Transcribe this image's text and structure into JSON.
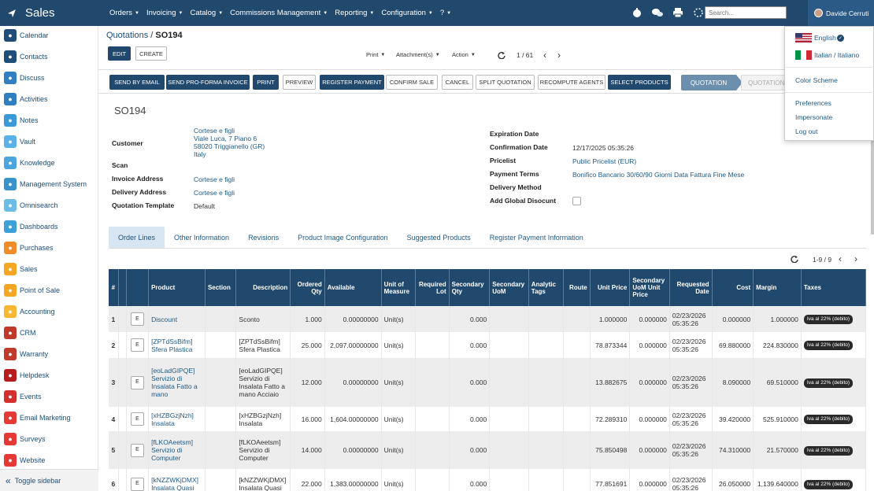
{
  "app": {
    "brand": "Sales"
  },
  "topmenu": [
    {
      "label": "Orders",
      "caret": "▼"
    },
    {
      "label": "Invoicing",
      "caret": "▼"
    },
    {
      "label": "Catalog",
      "caret": "▼"
    },
    {
      "label": "Commissions Management",
      "caret": "▼"
    },
    {
      "label": "Reporting",
      "caret": "▼"
    },
    {
      "label": "Configuration",
      "caret": "▼"
    },
    {
      "label": "?",
      "caret": "▼"
    }
  ],
  "search": {
    "placeholder": "Search..."
  },
  "user": {
    "name": "Davide Cerruti"
  },
  "sidebar": {
    "items": [
      {
        "label": "Calendar",
        "color": "#1f4e79"
      },
      {
        "label": "Contacts",
        "color": "#1f4e79"
      },
      {
        "label": "Discuss",
        "color": "#2f7fc1"
      },
      {
        "label": "Activities",
        "color": "#2f7fc1"
      },
      {
        "label": "Notes",
        "color": "#3a9ad9"
      },
      {
        "label": "Vault",
        "color": "#5bb0e8"
      },
      {
        "label": "Knowledge",
        "color": "#4aa6dd"
      },
      {
        "label": "Management System",
        "color": "#3893cc"
      },
      {
        "label": "Omnisearch",
        "color": "#6cbde6"
      },
      {
        "label": "Dashboards",
        "color": "#3da0d8"
      },
      {
        "label": "Purchases",
        "color": "#f28c28"
      },
      {
        "label": "Sales",
        "color": "#f5a623"
      },
      {
        "label": "Point of Sale",
        "color": "#f5a623"
      },
      {
        "label": "Accounting",
        "color": "#f7b733"
      },
      {
        "label": "CRM",
        "color": "#c0392b"
      },
      {
        "label": "Warranty",
        "color": "#c0392b"
      },
      {
        "label": "Helpdesk",
        "color": "#b71c1c"
      },
      {
        "label": "Events",
        "color": "#d32f2f"
      },
      {
        "label": "Email Marketing",
        "color": "#e53935"
      },
      {
        "label": "Surveys",
        "color": "#e53935"
      },
      {
        "label": "Website",
        "color": "#e53935"
      }
    ],
    "toggle_label": "Toggle sidebar"
  },
  "breadcrumb": {
    "parent": "Quotations",
    "separator": "/",
    "current": "SO194"
  },
  "actions": {
    "edit": "EDIT",
    "create": "CREATE",
    "print": "Print",
    "attachments": "Attachment(s)",
    "action": "Action",
    "pager": "1 / 61"
  },
  "buttons": [
    "SEND BY EMAIL",
    "SEND PRO-FORMA INVOICE",
    "PRINT",
    "PREVIEW",
    "REGISTER PAYMENT",
    "CONFIRM SALE",
    "CANCEL",
    "SPLIT QUOTATION",
    "RECOMPUTE AGENTS",
    "SELECT PRODUCTS"
  ],
  "status": {
    "active": "QUOTATION",
    "next": "QUOTATION"
  },
  "record": {
    "name": "SO194",
    "customer_label": "Customer",
    "customer_lines": [
      "Cortese e figli",
      "Viale Luca, 7 Piano 6",
      "58020 Triggianello (GR)",
      "Italy"
    ],
    "scan_label": "Scan",
    "invoice_address_label": "Invoice Address",
    "invoice_address": "Cortese e figli",
    "delivery_address_label": "Delivery Address",
    "delivery_address": "Cortese e figli",
    "template_label": "Quotation Template",
    "template": "Default",
    "expiration_label": "Expiration Date",
    "confirmation_label": "Confirmation Date",
    "confirmation_date": "12/17/2025 05:35:26",
    "pricelist_label": "Pricelist",
    "pricelist": "Public Pricelist (EUR)",
    "payment_terms_label": "Payment Terms",
    "payment_terms": "Bonifico Bancario 30/60/90 Giorni Data Fattura Fine Mese",
    "delivery_method_label": "Delivery Method",
    "global_discount_label": "Add Global Disocunt"
  },
  "tabs": [
    "Order Lines",
    "Other Information",
    "Revisions",
    "Product Image Configuration",
    "Suggested Products",
    "Register Payment Information"
  ],
  "lines_pager": "1-9 / 9",
  "table": {
    "headers": [
      "#",
      "",
      "Product",
      "Section",
      "Description",
      "Ordered Qty",
      "Available",
      "Unit of Measure",
      "Required Lot",
      "Secondary Qty",
      "Secondary UoM",
      "Analytic Tags",
      "Route",
      "Unit Price",
      "Secondary UoM Unit Price",
      "Requested Date",
      "Cost",
      "Margin",
      "Taxes"
    ],
    "edit_label": "E",
    "rows": [
      {
        "n": "1",
        "product": "Discount",
        "section": "",
        "description": "Sconto",
        "qty": "1.000",
        "available": "0.00000000",
        "uom": "Unit(s)",
        "sec_qty": "0.000",
        "unit_price": "1.000000",
        "sec_price": "0.000000",
        "date": "02/23/2026 05:35:26",
        "cost": "0.000000",
        "margin": "1.000000",
        "tax": "Iva al 22% (debito)"
      },
      {
        "n": "2",
        "product": "[ZPTdSsBifm] Sfera Plastica",
        "section": "",
        "description": "[ZPTdSsBifm] Sfera Plastica",
        "qty": "25.000",
        "available": "2,097.00000000",
        "uom": "Unit(s)",
        "sec_qty": "0.000",
        "unit_price": "78.873344",
        "sec_price": "0.000000",
        "date": "02/23/2026 05:35:26",
        "cost": "69.880000",
        "margin": "224.830000",
        "tax": "Iva al 22% (debito)"
      },
      {
        "n": "3",
        "product": "[eoLadGIPQE] Servizio di Insalata Fatto a mano",
        "section": "",
        "description": "[eoLadGIPQE] Servizio di Insalata Fatto a mano Acciaio",
        "qty": "12.000",
        "available": "0.00000000",
        "uom": "Unit(s)",
        "sec_qty": "0.000",
        "unit_price": "13.882675",
        "sec_price": "0.000000",
        "date": "02/23/2026 05:35:26",
        "cost": "8.090000",
        "margin": "69.510000",
        "tax": "Iva al 22% (debito)"
      },
      {
        "n": "4",
        "product": "[xHZBGzjNzh] Insalata",
        "section": "",
        "description": "[xHZBGzjNzh] Insalata",
        "qty": "16.000",
        "available": "1,604.00000000",
        "uom": "Unit(s)",
        "sec_qty": "0.000",
        "unit_price": "72.289310",
        "sec_price": "0.000000",
        "date": "02/23/2026 05:35:26",
        "cost": "39.420000",
        "margin": "525.910000",
        "tax": "Iva al 22% (debito)"
      },
      {
        "n": "5",
        "product": "[fLKOAeetsm] Servizio di Computer",
        "section": "",
        "description": "[fLKOAeetsm] Servizio di Computer",
        "qty": "14.000",
        "available": "0.00000000",
        "uom": "Unit(s)",
        "sec_qty": "0.000",
        "unit_price": "75.850498",
        "sec_price": "0.000000",
        "date": "02/23/2026 05:35:26",
        "cost": "74.310000",
        "margin": "21.570000",
        "tax": "Iva al 22% (debito)"
      },
      {
        "n": "6",
        "product": "[kNZZWKjDMX] Insalata Quasi",
        "section": "",
        "description": "[kNZZWKjDMX] Insalata Quasi",
        "qty": "22.000",
        "available": "1,383.00000000",
        "uom": "Unit(s)",
        "sec_qty": "0.000",
        "unit_price": "77.851691",
        "sec_price": "0.000000",
        "date": "02/23/2026 05:35:26",
        "cost": "26.050000",
        "margin": "1,139.640000",
        "tax": "Iva al 22% (debito)"
      }
    ]
  },
  "user_menu": {
    "english": "English",
    "italian": "Italian / Italiano",
    "color_scheme": "Color Scheme",
    "preferences": "Preferences",
    "impersonate": "Impersonate",
    "logout": "Log out"
  },
  "colors": {
    "navbar": "#21496e",
    "accent": "#1d5a8a"
  }
}
